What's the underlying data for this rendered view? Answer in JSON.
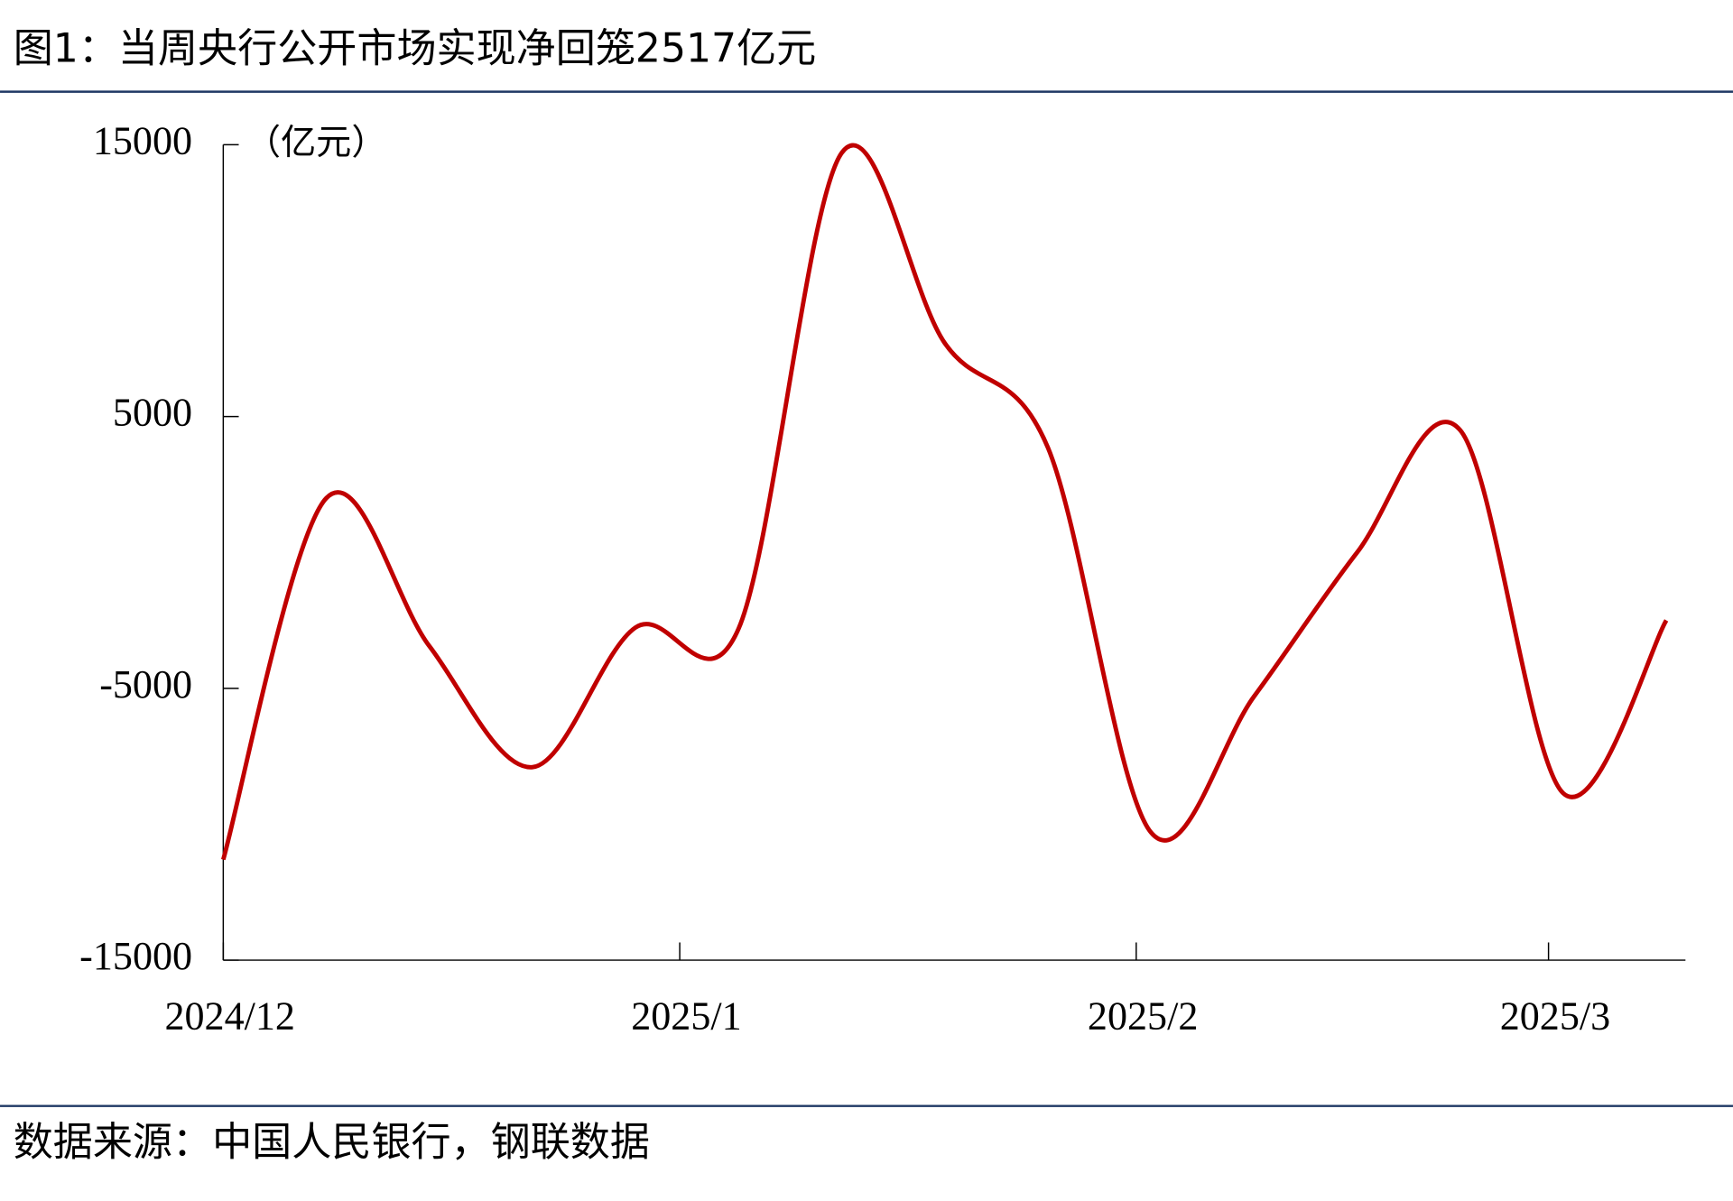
{
  "title": "图1：当周央行公开市场实现净回笼2517亿元",
  "source": "数据来源：中国人民银行，钢联数据",
  "chart_data": {
    "type": "line",
    "y_label": "（亿元）",
    "x": [
      0,
      7,
      14,
      21,
      28,
      35,
      42,
      49,
      56,
      63,
      70,
      77,
      84,
      91,
      98
    ],
    "series": [
      {
        "name": null,
        "color": "#c00000",
        "values": [
          -11300,
          2000,
          -3450,
          -7900,
          -2760,
          -2800,
          14700,
          7700,
          3860,
          -10300,
          -5300,
          0,
          4500,
          -8860,
          -2500
        ]
      }
    ],
    "xlim": [
      0,
      99.3
    ],
    "xticks": [
      {
        "value": 0,
        "label": "2024/12"
      },
      {
        "value": 31,
        "label": "2025/1"
      },
      {
        "value": 62,
        "label": "2025/2"
      },
      {
        "value": 90,
        "label": "2025/3"
      }
    ],
    "ylim": [
      -15000,
      15000
    ],
    "yticks": [
      -15000,
      -5000,
      5000,
      15000
    ]
  }
}
